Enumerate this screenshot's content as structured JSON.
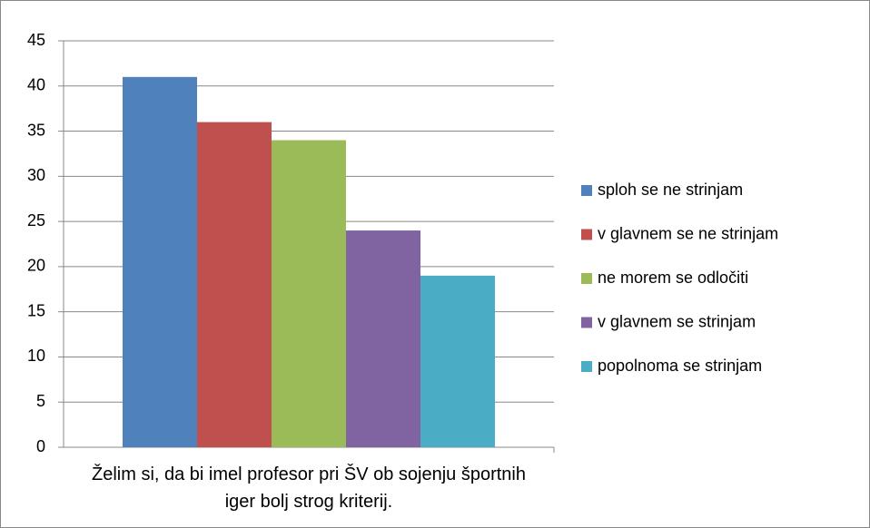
{
  "chart_data": {
    "type": "bar",
    "categories": [
      "Želim si, da bi imel profesor pri ŠV ob sojenju športnih iger bolj strog kriterij."
    ],
    "series": [
      {
        "name": "sploh se ne strinjam",
        "color": "#4f81bd",
        "values": [
          41
        ]
      },
      {
        "name": "v glavnem se ne strinjam",
        "color": "#c0504d",
        "values": [
          36
        ]
      },
      {
        "name": "ne morem se odločiti",
        "color": "#9bbb59",
        "values": [
          34
        ]
      },
      {
        "name": "v glavnem se strinjam",
        "color": "#8064a2",
        "values": [
          24
        ]
      },
      {
        "name": "popolnoma se strinjam",
        "color": "#4bacc6",
        "values": [
          19
        ]
      }
    ],
    "ylim": [
      0,
      45
    ],
    "yticks": [
      0,
      5,
      10,
      15,
      20,
      25,
      30,
      35,
      40,
      45
    ],
    "grid": true,
    "legend": "right"
  }
}
